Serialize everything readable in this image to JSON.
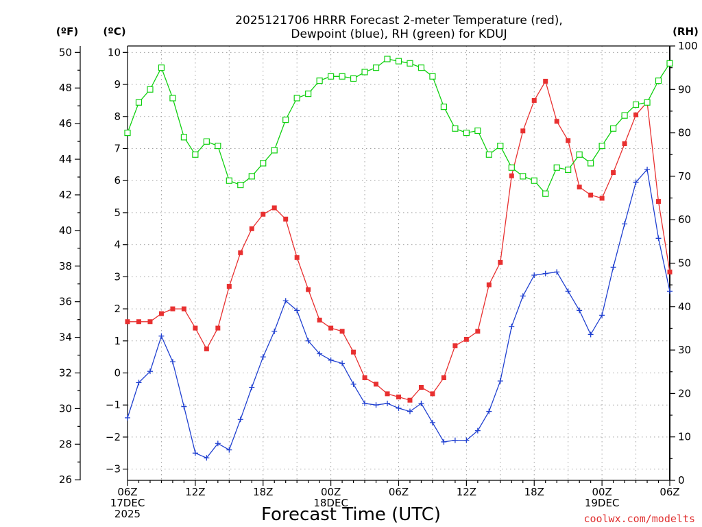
{
  "chart_data": {
    "type": "line",
    "title_lines": [
      "2025121706 HRRR Forecast 2-meter Temperature (red),",
      "Dewpoint (blue), RH (green) for KDUJ"
    ],
    "xlabel": "Forecast Time (UTC)",
    "credit": "coolwx.com/modelts",
    "units": {
      "fahrenheit": "(ºF)",
      "celsius": "(ºC)",
      "rh": "(RH)"
    },
    "x_hours": [
      6,
      7,
      8,
      9,
      10,
      11,
      12,
      13,
      14,
      15,
      16,
      17,
      18,
      19,
      20,
      21,
      22,
      23,
      24,
      25,
      26,
      27,
      28,
      29,
      30,
      31,
      32,
      33,
      34,
      35,
      36,
      37,
      38,
      39,
      40,
      41,
      42,
      43,
      44,
      45,
      46,
      47,
      48,
      49,
      50,
      51,
      52,
      53,
      54
    ],
    "xlim": [
      6,
      54
    ],
    "x_ticks": [
      {
        "hour": 6,
        "lines": [
          "06Z",
          "17DEC",
          "2025"
        ]
      },
      {
        "hour": 12,
        "lines": [
          "12Z"
        ]
      },
      {
        "hour": 18,
        "lines": [
          "18Z"
        ]
      },
      {
        "hour": 24,
        "lines": [
          "00Z",
          "18DEC"
        ]
      },
      {
        "hour": 30,
        "lines": [
          "06Z"
        ]
      },
      {
        "hour": 36,
        "lines": [
          "12Z"
        ]
      },
      {
        "hour": 42,
        "lines": [
          "18Z"
        ]
      },
      {
        "hour": 48,
        "lines": [
          "00Z",
          "19DEC"
        ]
      },
      {
        "hour": 54,
        "lines": [
          "06Z"
        ]
      }
    ],
    "y_left_celsius": {
      "lim": [
        -3.35,
        10.2
      ],
      "ticks": [
        -3,
        -2,
        -1,
        0,
        1,
        2,
        3,
        4,
        5,
        6,
        7,
        8,
        9,
        10
      ]
    },
    "y_left_fahrenheit": {
      "ticks": [
        26,
        28,
        30,
        32,
        34,
        36,
        38,
        40,
        42,
        44,
        46,
        48,
        50
      ]
    },
    "y_right_rh": {
      "lim": [
        0,
        100
      ],
      "ticks": [
        0,
        10,
        20,
        30,
        40,
        50,
        60,
        70,
        80,
        90,
        100
      ]
    },
    "grid": true,
    "series": [
      {
        "name": "2-meter Temperature",
        "axis": "celsius",
        "color": "#e83030",
        "marker": "filled-square",
        "values": [
          1.6,
          1.6,
          1.6,
          1.85,
          2.0,
          2.0,
          1.4,
          0.75,
          1.4,
          2.7,
          3.75,
          4.5,
          4.95,
          5.15,
          4.8,
          3.6,
          2.6,
          1.65,
          1.4,
          1.3,
          0.65,
          -0.15,
          -0.35,
          -0.65,
          -0.75,
          -0.85,
          -0.45,
          -0.65,
          -0.15,
          0.85,
          1.05,
          1.3,
          2.75,
          3.45,
          6.15,
          7.55,
          8.5,
          9.1,
          7.85,
          7.25,
          5.8,
          5.55,
          5.45,
          6.25,
          7.15,
          8.05,
          8.45,
          5.35,
          3.15
        ]
      },
      {
        "name": "Dewpoint",
        "axis": "celsius",
        "color": "#2040d0",
        "marker": "plus",
        "values": [
          -1.4,
          -0.3,
          0.05,
          1.15,
          0.35,
          -1.05,
          -2.5,
          -2.65,
          -2.2,
          -2.4,
          -1.45,
          -0.45,
          0.5,
          1.3,
          2.25,
          1.95,
          1.0,
          0.6,
          0.4,
          0.3,
          -0.35,
          -0.95,
          -1.0,
          -0.95,
          -1.1,
          -1.2,
          -0.95,
          -1.55,
          -2.15,
          -2.1,
          -2.1,
          -1.8,
          -1.2,
          -0.25,
          1.45,
          2.4,
          3.05,
          3.1,
          3.15,
          2.55,
          1.95,
          1.2,
          1.8,
          3.3,
          4.65,
          5.95,
          6.35,
          4.2,
          2.55
        ]
      },
      {
        "name": "RH",
        "axis": "rh",
        "color": "#10d010",
        "marker": "open-square",
        "values": [
          80,
          87,
          90,
          95,
          88,
          79,
          75,
          78,
          77,
          69,
          68,
          70,
          73,
          76,
          83,
          88,
          89,
          92,
          93,
          93,
          92.5,
          94,
          95,
          97,
          96.5,
          96,
          95,
          93,
          86,
          81,
          80,
          80.5,
          75,
          77,
          72,
          70,
          69,
          66,
          72,
          71.5,
          75,
          73,
          77,
          81,
          84,
          86.5,
          87,
          92,
          96
        ]
      }
    ]
  }
}
